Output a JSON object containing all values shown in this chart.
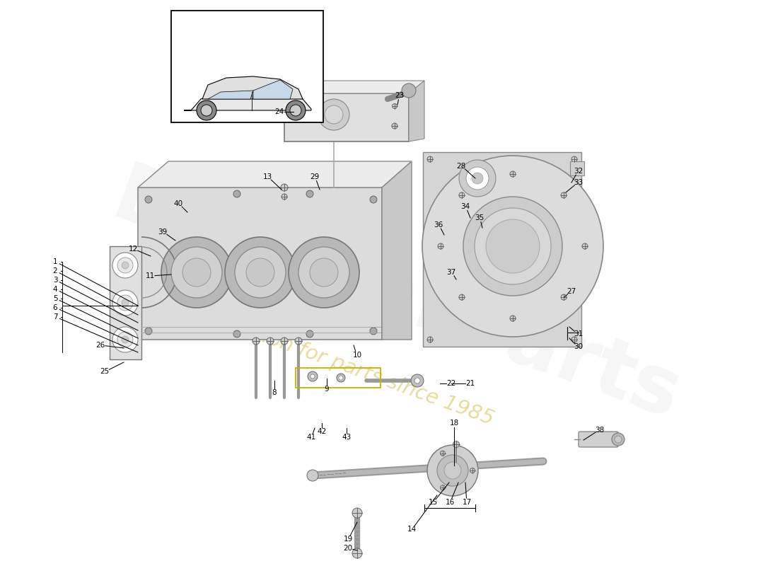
{
  "bg_color": "#ffffff",
  "label_color": "#000000",
  "body_fill": "#dcdcdc",
  "body_edge": "#888888",
  "body_dark": "#c8c8c8",
  "body_light": "#ececec",
  "accent_yellow": "#c8b000",
  "watermark_main": "EuroCarParts",
  "watermark_sub": "a passion for parts since 1985",
  "label_fontsize": 7.5,
  "labels": [
    [
      1,
      78,
      370,
      195,
      432
    ],
    [
      2,
      78,
      383,
      195,
      445
    ],
    [
      3,
      78,
      396,
      195,
      456
    ],
    [
      4,
      78,
      409,
      195,
      467
    ],
    [
      5,
      78,
      422,
      195,
      478
    ],
    [
      6,
      78,
      435,
      195,
      488
    ],
    [
      7,
      78,
      448,
      195,
      498
    ],
    [
      8,
      388,
      555,
      388,
      538
    ],
    [
      9,
      462,
      550,
      462,
      535
    ],
    [
      10,
      505,
      502,
      500,
      488
    ],
    [
      11,
      212,
      390,
      242,
      388
    ],
    [
      12,
      188,
      352,
      213,
      362
    ],
    [
      13,
      378,
      250,
      398,
      268
    ],
    [
      14,
      582,
      748,
      618,
      700
    ],
    [
      15,
      612,
      710,
      635,
      682
    ],
    [
      16,
      636,
      710,
      648,
      682
    ],
    [
      17,
      660,
      710,
      658,
      682
    ],
    [
      18,
      642,
      598,
      642,
      658
    ],
    [
      19,
      492,
      762,
      505,
      738
    ],
    [
      20,
      492,
      775,
      505,
      778
    ],
    [
      21,
      665,
      542,
      638,
      542
    ],
    [
      22,
      638,
      542,
      622,
      542
    ],
    [
      23,
      565,
      135,
      562,
      148
    ],
    [
      24,
      395,
      158,
      415,
      158
    ],
    [
      25,
      148,
      525,
      175,
      512
    ],
    [
      26,
      142,
      488,
      175,
      492
    ],
    [
      27,
      808,
      412,
      798,
      420
    ],
    [
      28,
      652,
      235,
      672,
      252
    ],
    [
      29,
      445,
      250,
      452,
      268
    ],
    [
      30,
      818,
      490,
      805,
      478
    ],
    [
      31,
      818,
      472,
      805,
      462
    ],
    [
      32,
      818,
      242,
      808,
      258
    ],
    [
      33,
      818,
      258,
      800,
      272
    ],
    [
      34,
      658,
      292,
      665,
      308
    ],
    [
      35,
      678,
      308,
      682,
      322
    ],
    [
      36,
      620,
      318,
      628,
      332
    ],
    [
      37,
      638,
      385,
      645,
      395
    ],
    [
      38,
      848,
      608,
      825,
      622
    ],
    [
      39,
      230,
      328,
      248,
      340
    ],
    [
      40,
      252,
      288,
      265,
      300
    ],
    [
      41,
      440,
      618,
      445,
      605
    ],
    [
      42,
      455,
      610,
      455,
      598
    ],
    [
      43,
      490,
      618,
      490,
      605
    ]
  ]
}
